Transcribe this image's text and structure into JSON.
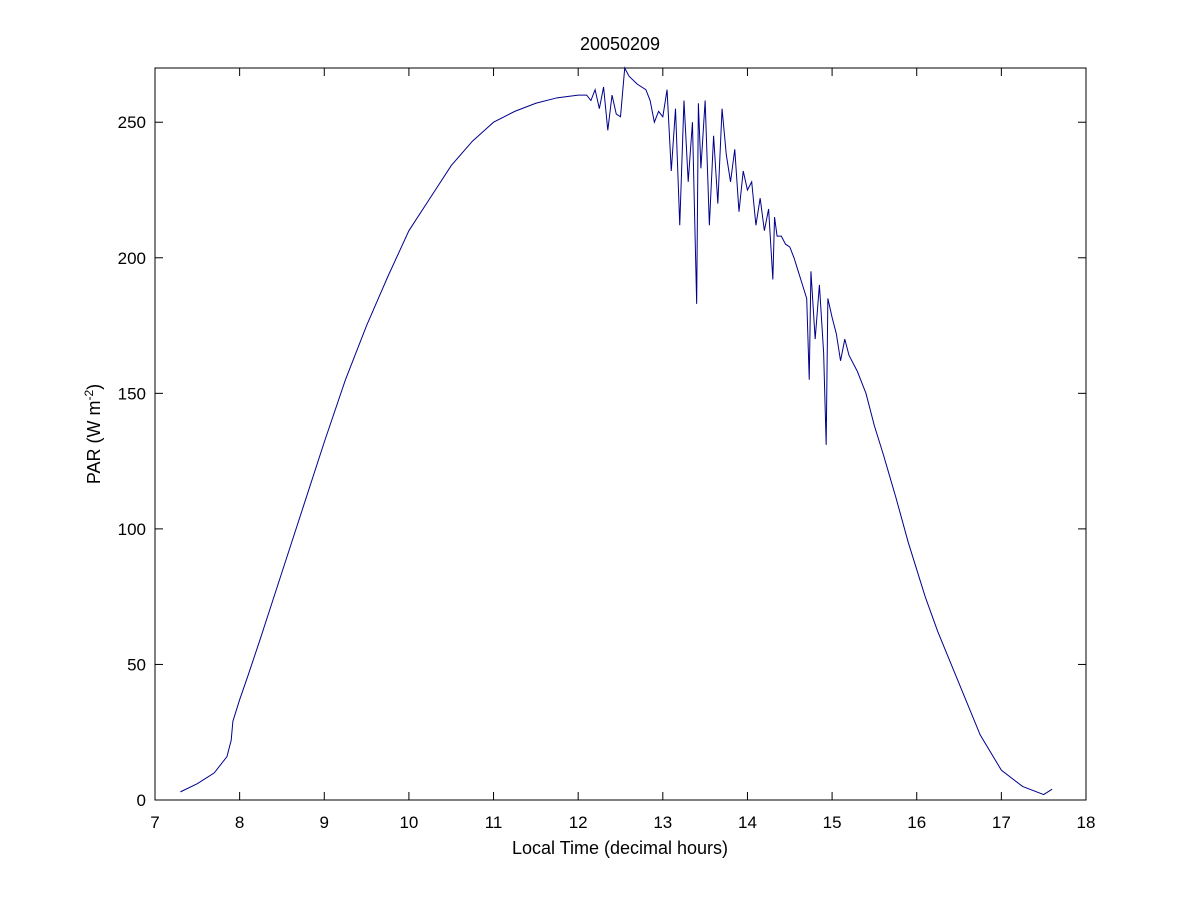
{
  "chart_data": {
    "type": "line",
    "title": "20050209",
    "xlabel": "Local Time (decimal hours)",
    "ylabel": {
      "prefix": "PAR (W m",
      "superscript": "-2",
      "suffix": ")"
    },
    "xlim": [
      7,
      18
    ],
    "ylim": [
      0,
      270
    ],
    "xticks": [
      7,
      8,
      9,
      10,
      11,
      12,
      13,
      14,
      15,
      16,
      17,
      18
    ],
    "yticks": [
      0,
      50,
      100,
      150,
      200,
      250
    ],
    "grid": false,
    "legend": "none",
    "series": [
      {
        "color": "#00008b",
        "x": [
          7.3,
          7.5,
          7.7,
          7.85,
          7.9,
          7.92,
          8.0,
          8.1,
          8.25,
          8.5,
          8.75,
          9.0,
          9.25,
          9.5,
          9.75,
          10.0,
          10.25,
          10.5,
          10.75,
          11.0,
          11.25,
          11.5,
          11.75,
          12.0,
          12.1,
          12.15,
          12.2,
          12.25,
          12.3,
          12.35,
          12.4,
          12.45,
          12.5,
          12.55,
          12.6,
          12.7,
          12.8,
          12.85,
          12.9,
          12.95,
          13.0,
          13.05,
          13.1,
          13.15,
          13.2,
          13.25,
          13.3,
          13.35,
          13.4,
          13.42,
          13.45,
          13.5,
          13.55,
          13.6,
          13.65,
          13.7,
          13.75,
          13.8,
          13.85,
          13.9,
          13.95,
          14.0,
          14.05,
          14.1,
          14.15,
          14.2,
          14.25,
          14.3,
          14.32,
          14.35,
          14.4,
          14.45,
          14.5,
          14.55,
          14.6,
          14.65,
          14.7,
          14.73,
          14.75,
          14.8,
          14.85,
          14.9,
          14.93,
          14.95,
          15.0,
          15.05,
          15.1,
          15.15,
          15.2,
          15.3,
          15.4,
          15.5,
          15.6,
          15.75,
          15.9,
          16.0,
          16.1,
          16.25,
          16.5,
          16.75,
          17.0,
          17.25,
          17.5,
          17.6
        ],
        "y": [
          3,
          6,
          10,
          16,
          22,
          29,
          37,
          46,
          60,
          84,
          108,
          132,
          155,
          175,
          193,
          210,
          222,
          234,
          243,
          250,
          254,
          257,
          259,
          260,
          260,
          258,
          262,
          255,
          263,
          247,
          260,
          253,
          252,
          270,
          267,
          264,
          262,
          258,
          250,
          254,
          252,
          262,
          232,
          255,
          212,
          258,
          228,
          250,
          183,
          257,
          233,
          258,
          212,
          245,
          220,
          255,
          238,
          228,
          240,
          217,
          232,
          225,
          228,
          212,
          222,
          210,
          218,
          192,
          215,
          208,
          208,
          205,
          204,
          200,
          195,
          190,
          185,
          155,
          195,
          170,
          190,
          165,
          131,
          185,
          178,
          172,
          162,
          170,
          164,
          158,
          150,
          138,
          128,
          112,
          95,
          85,
          75,
          62,
          43,
          24,
          11,
          5,
          2,
          4
        ]
      }
    ]
  }
}
